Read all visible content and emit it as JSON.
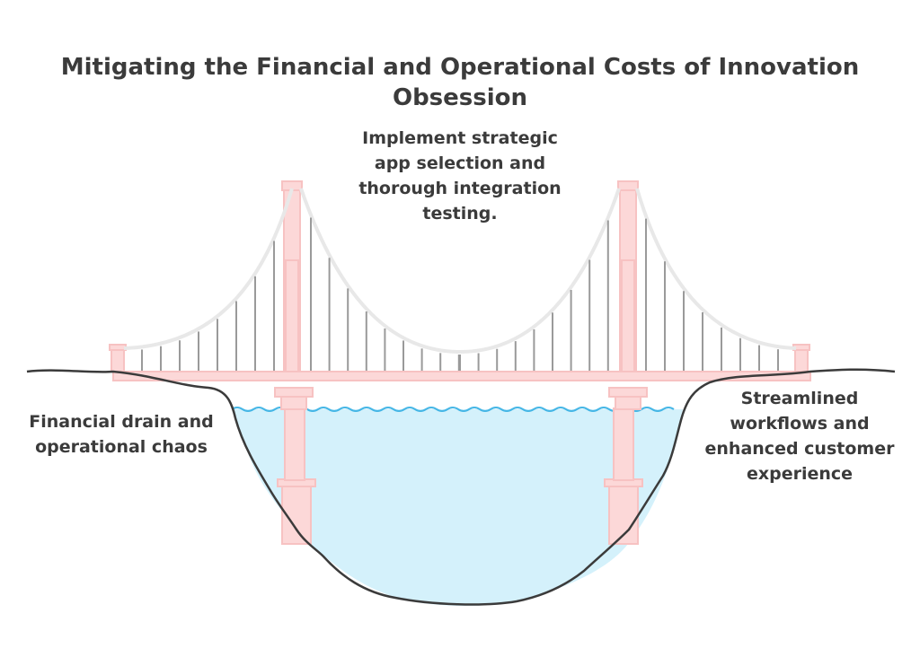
{
  "diagram": {
    "title": "Mitigating the Financial and Operational Costs of Innovation Obsession",
    "bridge_label": "Implement strategic app selection and thorough integration testing.",
    "left_bank_label": "Financial drain and operational chaos",
    "right_bank_label": "Streamlined workflows and enhanced customer experience"
  },
  "colors": {
    "tower_fill": "#fcd8d8",
    "tower_stroke": "#f7c2c2",
    "cable": "#e8e8e8",
    "suspender": "#9a9a9a",
    "water": "#d4f1fb",
    "wave": "#45b6e6",
    "ground": "#3b3b3b",
    "text": "#3b3b3b"
  }
}
